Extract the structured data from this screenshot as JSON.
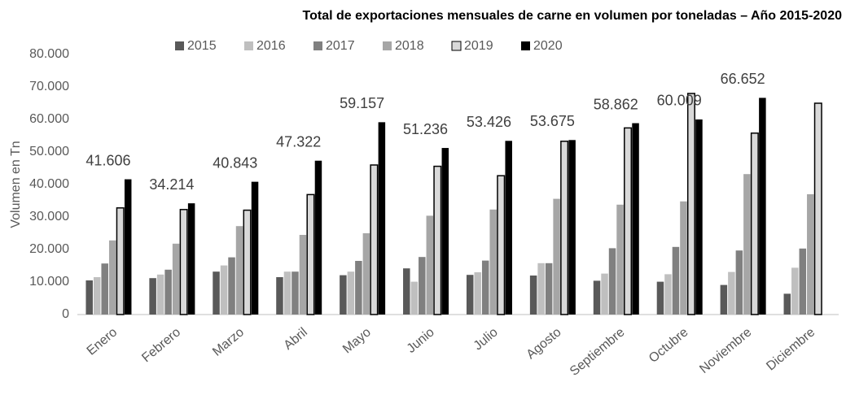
{
  "chart_data": {
    "type": "bar",
    "title": "Total de exportaciones mensuales de carne en volumen por toneladas – Año 2015-2020",
    "y_label": "Volumen en Tn",
    "categories": [
      "Enero",
      "Febrero",
      "Marzo",
      "Abril",
      "Mayo",
      "Junio",
      "Julio",
      "Agosto",
      "Septiembre",
      "Octubre",
      "Noviembre",
      "Diciembre"
    ],
    "series": [
      {
        "name": "2015",
        "color": "#595959",
        "values": [
          10500,
          11200,
          13200,
          11500,
          12100,
          14200,
          12200,
          12000,
          10400,
          10100,
          9100,
          6400
        ]
      },
      {
        "name": "2016",
        "color": "#bfbfbf",
        "values": [
          11500,
          12300,
          15100,
          13200,
          13200,
          10100,
          13000,
          15800,
          12600,
          12400,
          13100,
          14400
        ]
      },
      {
        "name": "2017",
        "color": "#808080",
        "values": [
          15700,
          13800,
          17600,
          13200,
          16500,
          17700,
          16600,
          15800,
          20400,
          20800,
          19700,
          20300
        ]
      },
      {
        "name": "2018",
        "color": "#a6a6a6",
        "values": [
          22800,
          21800,
          27200,
          24500,
          25000,
          30400,
          32300,
          35600,
          33800,
          34800,
          43200,
          37000
        ]
      },
      {
        "name": "2019",
        "color": "#d9d9d9",
        "edgecolor": "#000000",
        "values": [
          32800,
          32300,
          32100,
          36900,
          46000,
          45600,
          42700,
          53300,
          57400,
          68000,
          55800,
          65000
        ]
      },
      {
        "name": "2020",
        "color": "#000000",
        "values": [
          41606,
          34214,
          40843,
          47322,
          59157,
          51236,
          53426,
          53675,
          58862,
          60009,
          66652,
          null
        ],
        "value_labels": [
          "41.606",
          "34.214",
          "40.843",
          "47.322",
          "59.157",
          "51.236",
          "53.426",
          "53.675",
          "58.862",
          "60.009",
          "66.652",
          null
        ]
      }
    ],
    "ylim": [
      0,
      80000
    ],
    "yticks": [
      0,
      {
        "value": 10000,
        "label": "10.000"
      },
      {
        "value": 20000,
        "label": "20.000"
      },
      {
        "value": 30000,
        "label": "30.000"
      },
      {
        "value": 40000,
        "label": "40.000"
      },
      {
        "value": 50000,
        "label": "50.000"
      },
      {
        "value": 60000,
        "label": "60.000"
      },
      {
        "value": 70000,
        "label": "70.000"
      },
      {
        "value": 80000,
        "label": "80.000"
      }
    ],
    "grid": false,
    "legend": "top"
  }
}
